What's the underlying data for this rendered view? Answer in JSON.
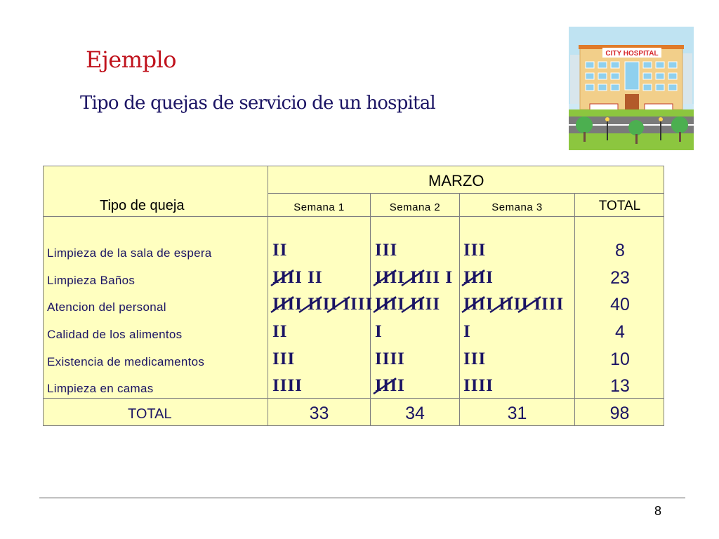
{
  "slide": {
    "title": "Ejemplo",
    "subtitle": "Tipo de quejas  de servicio de un hospital",
    "page_number": "8"
  },
  "hospital_image": {
    "sign": "CITY HOSPITAL"
  },
  "table": {
    "col_header": "Tipo de queja",
    "month": "MARZO",
    "weeks": [
      "Semana 1",
      "Semana 2",
      "Semana 3"
    ],
    "total_header": "TOTAL",
    "rows": [
      {
        "label": "Limpieza de la sala de espera",
        "w1": "II",
        "w2": "III",
        "w3": "III",
        "total": "8"
      },
      {
        "label": "Limpieza Baños",
        "w1": "IIII  II",
        "w2": "IIII  IIII  I",
        "w3": "IIII",
        "total": "23"
      },
      {
        "label": "Atencion del personal",
        "w1": "IIII  IIII  IIII",
        "w2": "IIII  IIII",
        "w3": "IIII  IIII  IIII",
        "total": "40"
      },
      {
        "label": "Calidad de los alimentos",
        "w1": "II",
        "w2": "I",
        "w3": "I",
        "total": "4"
      },
      {
        "label": "Existencia de medicamentos",
        "w1": "III",
        "w2": "IIII",
        "w3": "III",
        "total": "10"
      },
      {
        "label": "Limpieza en camas",
        "w1": "IIII",
        "w2": "IIII",
        "w3": "IIII",
        "total": "13"
      }
    ],
    "footer": {
      "label": "TOTAL",
      "w1": "33",
      "w2": "34",
      "w3": "31",
      "total": "98"
    }
  }
}
